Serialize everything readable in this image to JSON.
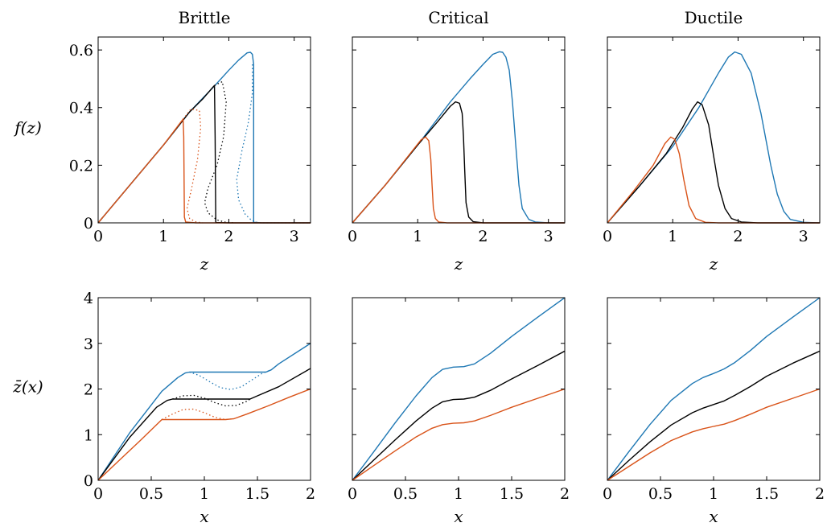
{
  "colors": {
    "blue": "#1f78b4",
    "black": "#000000",
    "orange": "#d95319"
  },
  "column_titles": [
    "Brittle",
    "Critical",
    "Ductile"
  ],
  "row_axis": [
    {
      "xlabel": "z",
      "ylabel": "f(z)"
    },
    {
      "xlabel": "x",
      "ylabel": "z̄(x)"
    }
  ],
  "chart_data": [
    {
      "type": "line",
      "title": "Brittle",
      "xlabel": "z",
      "ylabel": "f(z)",
      "xlim": [
        0,
        3.25
      ],
      "ylim": [
        0,
        0.645
      ],
      "xticks": [
        0,
        1,
        2,
        3
      ],
      "xtick_labels": [
        "0",
        "1",
        "2",
        "3"
      ],
      "yticks": [
        0,
        0.2,
        0.4,
        0.6
      ],
      "ytick_labels": [
        "0",
        "0.2",
        "0.4",
        "0.6"
      ],
      "series": [
        {
          "color": "blue",
          "style": "solid",
          "x": [
            0,
            1.0,
            1.4,
            1.8,
            2.0,
            2.15,
            2.28,
            2.33,
            2.36,
            2.38,
            2.38,
            2.5,
            3.25
          ],
          "y": [
            0,
            0.27,
            0.385,
            0.48,
            0.53,
            0.565,
            0.59,
            0.592,
            0.585,
            0.55,
            0.002,
            0,
            0
          ]
        },
        {
          "color": "blue",
          "style": "dotted",
          "x": [
            2.36,
            2.36,
            2.3,
            2.2,
            2.12,
            2.15,
            2.25,
            2.35,
            2.42,
            2.5,
            3.25
          ],
          "y": [
            0.55,
            0.45,
            0.35,
            0.25,
            0.15,
            0.08,
            0.03,
            0.008,
            0.002,
            0,
            0
          ]
        },
        {
          "color": "black",
          "style": "solid",
          "x": [
            0,
            1.0,
            1.4,
            1.6,
            1.76,
            1.78,
            1.79,
            1.8,
            2.0,
            3.25
          ],
          "y": [
            0,
            0.27,
            0.385,
            0.43,
            0.472,
            0.477,
            0.3,
            0.001,
            0,
            0
          ]
        },
        {
          "color": "black",
          "style": "dotted",
          "x": [
            1.78,
            1.9,
            1.96,
            1.92,
            1.82,
            1.68,
            1.63,
            1.68,
            1.82,
            1.95,
            2.1
          ],
          "y": [
            0.477,
            0.49,
            0.42,
            0.3,
            0.2,
            0.12,
            0.07,
            0.035,
            0.01,
            0.002,
            0
          ]
        },
        {
          "color": "orange",
          "style": "solid",
          "x": [
            0,
            1.0,
            1.25,
            1.3,
            1.31,
            1.32,
            1.34,
            1.5,
            3.25
          ],
          "y": [
            0,
            0.27,
            0.345,
            0.36,
            0.3,
            0.02,
            0.003,
            0,
            0
          ]
        },
        {
          "color": "orange",
          "style": "dotted",
          "x": [
            1.3,
            1.42,
            1.55,
            1.57,
            1.52,
            1.43,
            1.36,
            1.4,
            1.5,
            1.6
          ],
          "y": [
            0.36,
            0.395,
            0.39,
            0.33,
            0.22,
            0.12,
            0.05,
            0.015,
            0.003,
            0
          ]
        }
      ]
    },
    {
      "type": "line",
      "title": "Critical",
      "xlabel": "z",
      "ylabel": "",
      "xlim": [
        0,
        3.25
      ],
      "ylim": [
        0,
        0.645
      ],
      "xticks": [
        0,
        1,
        2,
        3
      ],
      "xtick_labels": [
        "0",
        "1",
        "2",
        "3"
      ],
      "yticks": [
        0,
        0.2,
        0.4,
        0.6
      ],
      "ytick_labels": [],
      "series": [
        {
          "color": "blue",
          "style": "solid",
          "x": [
            0,
            0.5,
            1.0,
            1.5,
            1.8,
            2.0,
            2.15,
            2.25,
            2.3,
            2.35,
            2.4,
            2.45,
            2.5,
            2.55,
            2.6,
            2.7,
            2.8,
            3.0,
            3.25
          ],
          "y": [
            0,
            0.13,
            0.27,
            0.42,
            0.5,
            0.55,
            0.585,
            0.594,
            0.592,
            0.575,
            0.53,
            0.42,
            0.27,
            0.13,
            0.05,
            0.012,
            0.003,
            0,
            0
          ]
        },
        {
          "color": "black",
          "style": "solid",
          "x": [
            0,
            0.5,
            1.0,
            1.3,
            1.5,
            1.58,
            1.64,
            1.68,
            1.7,
            1.72,
            1.74,
            1.78,
            1.85,
            2.0,
            3.25
          ],
          "y": [
            0,
            0.13,
            0.27,
            0.35,
            0.405,
            0.42,
            0.415,
            0.38,
            0.3,
            0.18,
            0.07,
            0.02,
            0.004,
            0,
            0
          ]
        },
        {
          "color": "orange",
          "style": "solid",
          "x": [
            0,
            0.5,
            0.9,
            1.05,
            1.12,
            1.17,
            1.2,
            1.22,
            1.24,
            1.27,
            1.32,
            1.45,
            3.25
          ],
          "y": [
            0,
            0.13,
            0.245,
            0.288,
            0.298,
            0.285,
            0.22,
            0.13,
            0.05,
            0.015,
            0.003,
            0,
            0
          ]
        }
      ]
    },
    {
      "type": "line",
      "title": "Ductile",
      "xlabel": "z",
      "ylabel": "",
      "xlim": [
        0,
        3.25
      ],
      "ylim": [
        0,
        0.645
      ],
      "xticks": [
        0,
        1,
        2,
        3
      ],
      "xtick_labels": [
        "0",
        "1",
        "2",
        "3"
      ],
      "yticks": [
        0,
        0.2,
        0.4,
        0.6
      ],
      "ytick_labels": [],
      "series": [
        {
          "color": "blue",
          "style": "solid",
          "x": [
            0,
            0.5,
            1.0,
            1.4,
            1.7,
            1.85,
            1.95,
            2.05,
            2.2,
            2.35,
            2.5,
            2.6,
            2.7,
            2.8,
            3.0,
            3.25
          ],
          "y": [
            0,
            0.13,
            0.265,
            0.4,
            0.52,
            0.575,
            0.593,
            0.585,
            0.52,
            0.38,
            0.2,
            0.1,
            0.04,
            0.012,
            0.002,
            0
          ]
        },
        {
          "color": "black",
          "style": "solid",
          "x": [
            0,
            0.5,
            0.9,
            1.15,
            1.3,
            1.38,
            1.45,
            1.55,
            1.62,
            1.7,
            1.8,
            1.9,
            2.05,
            2.3,
            3.25
          ],
          "y": [
            0,
            0.13,
            0.24,
            0.33,
            0.395,
            0.42,
            0.41,
            0.34,
            0.24,
            0.13,
            0.05,
            0.015,
            0.003,
            0,
            0
          ]
        },
        {
          "color": "orange",
          "style": "solid",
          "x": [
            0,
            0.4,
            0.7,
            0.88,
            0.97,
            1.03,
            1.1,
            1.17,
            1.25,
            1.35,
            1.5,
            1.7,
            3.25
          ],
          "y": [
            0,
            0.11,
            0.2,
            0.275,
            0.298,
            0.29,
            0.24,
            0.15,
            0.06,
            0.015,
            0.002,
            0,
            0
          ]
        }
      ]
    },
    {
      "type": "line",
      "title": "",
      "xlabel": "x",
      "ylabel": "z̄(x)",
      "xlim": [
        0,
        2
      ],
      "ylim": [
        0,
        4
      ],
      "xticks": [
        0,
        0.5,
        1,
        1.5,
        2
      ],
      "xtick_labels": [
        "0",
        "0.5",
        "1",
        "1.5",
        "2"
      ],
      "yticks": [
        0,
        1,
        2,
        3,
        4
      ],
      "ytick_labels": [
        "0",
        "1",
        "2",
        "3",
        "4"
      ],
      "series": [
        {
          "color": "blue",
          "style": "solid",
          "x": [
            0,
            0.3,
            0.6,
            0.75,
            0.82,
            0.86,
            1.0,
            1.2,
            1.4,
            1.58,
            1.63,
            1.7,
            2.0
          ],
          "y": [
            0,
            1.05,
            1.95,
            2.25,
            2.35,
            2.37,
            2.37,
            2.37,
            2.37,
            2.37,
            2.42,
            2.55,
            3.0
          ]
        },
        {
          "color": "blue",
          "style": "dotted",
          "x": [
            0.86,
            0.95,
            1.05,
            1.15,
            1.25,
            1.35,
            1.45,
            1.55,
            1.63
          ],
          "y": [
            2.37,
            2.3,
            2.16,
            2.03,
            1.99,
            2.05,
            2.2,
            2.35,
            2.42
          ]
        },
        {
          "color": "black",
          "style": "solid",
          "x": [
            0,
            0.3,
            0.55,
            0.65,
            0.7,
            0.8,
            1.0,
            1.2,
            1.43,
            1.5,
            1.7,
            2.0
          ],
          "y": [
            0,
            0.95,
            1.6,
            1.75,
            1.78,
            1.78,
            1.78,
            1.78,
            1.78,
            1.85,
            2.05,
            2.45
          ]
        },
        {
          "color": "black",
          "style": "dotted",
          "x": [
            0.7,
            0.8,
            0.9,
            1.0,
            1.1,
            1.2,
            1.3,
            1.4,
            1.43
          ],
          "y": [
            1.78,
            1.85,
            1.86,
            1.8,
            1.7,
            1.63,
            1.64,
            1.73,
            1.78
          ]
        },
        {
          "color": "orange",
          "style": "solid",
          "x": [
            0,
            0.2,
            0.4,
            0.6,
            0.8,
            1.0,
            1.2,
            1.28,
            1.4,
            1.6,
            1.8,
            2.0
          ],
          "y": [
            0,
            0.44,
            0.88,
            1.33,
            1.33,
            1.33,
            1.33,
            1.35,
            1.45,
            1.63,
            1.82,
            2.0
          ]
        },
        {
          "color": "orange",
          "style": "dotted",
          "x": [
            0.6,
            0.7,
            0.8,
            0.9,
            1.0,
            1.1,
            1.2,
            1.28
          ],
          "y": [
            1.33,
            1.45,
            1.55,
            1.56,
            1.48,
            1.38,
            1.33,
            1.35
          ]
        }
      ]
    },
    {
      "type": "line",
      "title": "",
      "xlabel": "x",
      "ylabel": "",
      "xlim": [
        0,
        2
      ],
      "ylim": [
        0,
        4
      ],
      "xticks": [
        0,
        0.5,
        1,
        1.5,
        2
      ],
      "xtick_labels": [
        "0",
        "0.5",
        "1",
        "1.5",
        "2"
      ],
      "yticks": [
        0,
        1,
        2,
        3,
        4
      ],
      "ytick_labels": [],
      "series": [
        {
          "color": "blue",
          "style": "solid",
          "x": [
            0,
            0.2,
            0.4,
            0.6,
            0.75,
            0.85,
            0.95,
            1.05,
            1.15,
            1.3,
            1.5,
            1.75,
            2.0
          ],
          "y": [
            0,
            0.62,
            1.25,
            1.85,
            2.25,
            2.43,
            2.48,
            2.49,
            2.55,
            2.78,
            3.15,
            3.58,
            4.0
          ]
        },
        {
          "color": "black",
          "style": "solid",
          "x": [
            0,
            0.2,
            0.4,
            0.6,
            0.75,
            0.85,
            0.95,
            1.05,
            1.15,
            1.3,
            1.5,
            1.75,
            2.0
          ],
          "y": [
            0,
            0.44,
            0.88,
            1.3,
            1.58,
            1.72,
            1.77,
            1.78,
            1.82,
            1.97,
            2.22,
            2.52,
            2.83
          ]
        },
        {
          "color": "orange",
          "style": "solid",
          "x": [
            0,
            0.2,
            0.4,
            0.6,
            0.75,
            0.85,
            0.95,
            1.05,
            1.15,
            1.3,
            1.5,
            1.75,
            2.0
          ],
          "y": [
            0,
            0.32,
            0.64,
            0.95,
            1.14,
            1.22,
            1.25,
            1.26,
            1.3,
            1.42,
            1.6,
            1.8,
            2.0
          ]
        }
      ]
    },
    {
      "type": "line",
      "title": "",
      "xlabel": "x",
      "ylabel": "",
      "xlim": [
        0,
        2
      ],
      "ylim": [
        0,
        4
      ],
      "xticks": [
        0,
        0.5,
        1,
        1.5,
        2
      ],
      "xtick_labels": [
        "0",
        "0.5",
        "1",
        "1.5",
        "2"
      ],
      "yticks": [
        0,
        1,
        2,
        3,
        4
      ],
      "ytick_labels": [],
      "series": [
        {
          "color": "blue",
          "style": "solid",
          "x": [
            0,
            0.2,
            0.4,
            0.6,
            0.8,
            0.9,
            1.0,
            1.1,
            1.2,
            1.35,
            1.5,
            1.75,
            2.0
          ],
          "y": [
            0,
            0.62,
            1.22,
            1.75,
            2.12,
            2.25,
            2.34,
            2.44,
            2.58,
            2.85,
            3.15,
            3.58,
            4.0
          ]
        },
        {
          "color": "black",
          "style": "solid",
          "x": [
            0,
            0.2,
            0.4,
            0.6,
            0.8,
            0.9,
            1.0,
            1.1,
            1.2,
            1.35,
            1.5,
            1.75,
            2.0
          ],
          "y": [
            0,
            0.43,
            0.84,
            1.21,
            1.48,
            1.58,
            1.66,
            1.74,
            1.86,
            2.06,
            2.28,
            2.57,
            2.83
          ]
        },
        {
          "color": "orange",
          "style": "solid",
          "x": [
            0,
            0.2,
            0.4,
            0.6,
            0.8,
            0.9,
            1.0,
            1.1,
            1.2,
            1.35,
            1.5,
            1.75,
            2.0
          ],
          "y": [
            0,
            0.3,
            0.6,
            0.87,
            1.06,
            1.13,
            1.18,
            1.23,
            1.31,
            1.45,
            1.6,
            1.8,
            2.0
          ]
        }
      ]
    }
  ]
}
